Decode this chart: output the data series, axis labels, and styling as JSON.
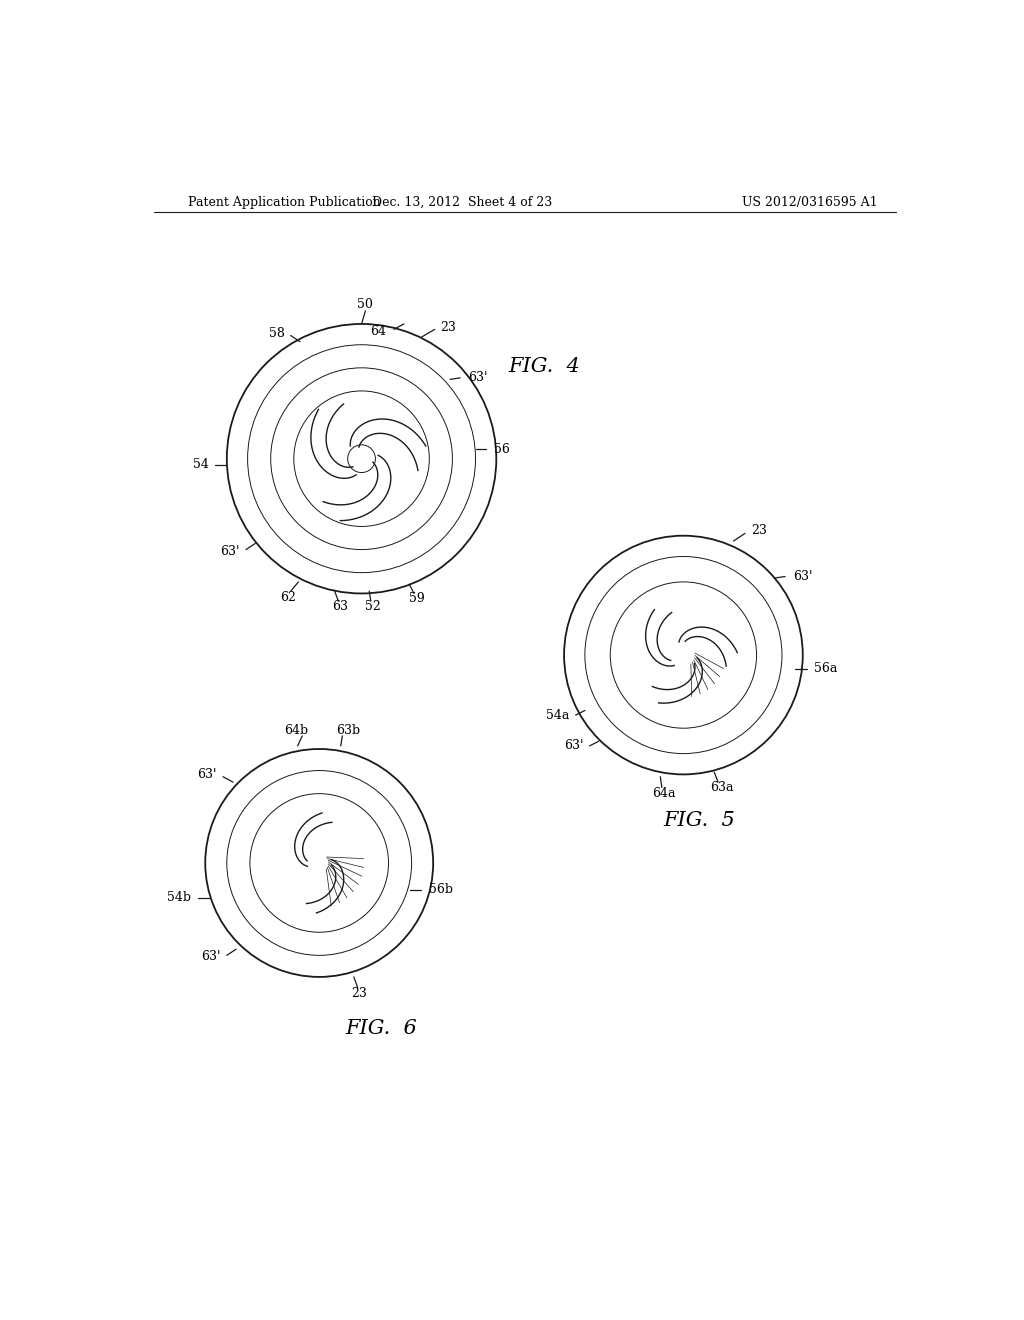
{
  "bg_color": "#ffffff",
  "line_color": "#1a1a1a",
  "header_left": "Patent Application Publication",
  "header_mid": "Dec. 13, 2012  Sheet 4 of 23",
  "header_right": "US 2012/0316595 A1",
  "fig4_title": "FIG.  4",
  "fig5_title": "FIG.  5",
  "fig6_title": "FIG.  6",
  "font_size_header": 9,
  "font_size_label": 9,
  "font_size_fig": 15
}
